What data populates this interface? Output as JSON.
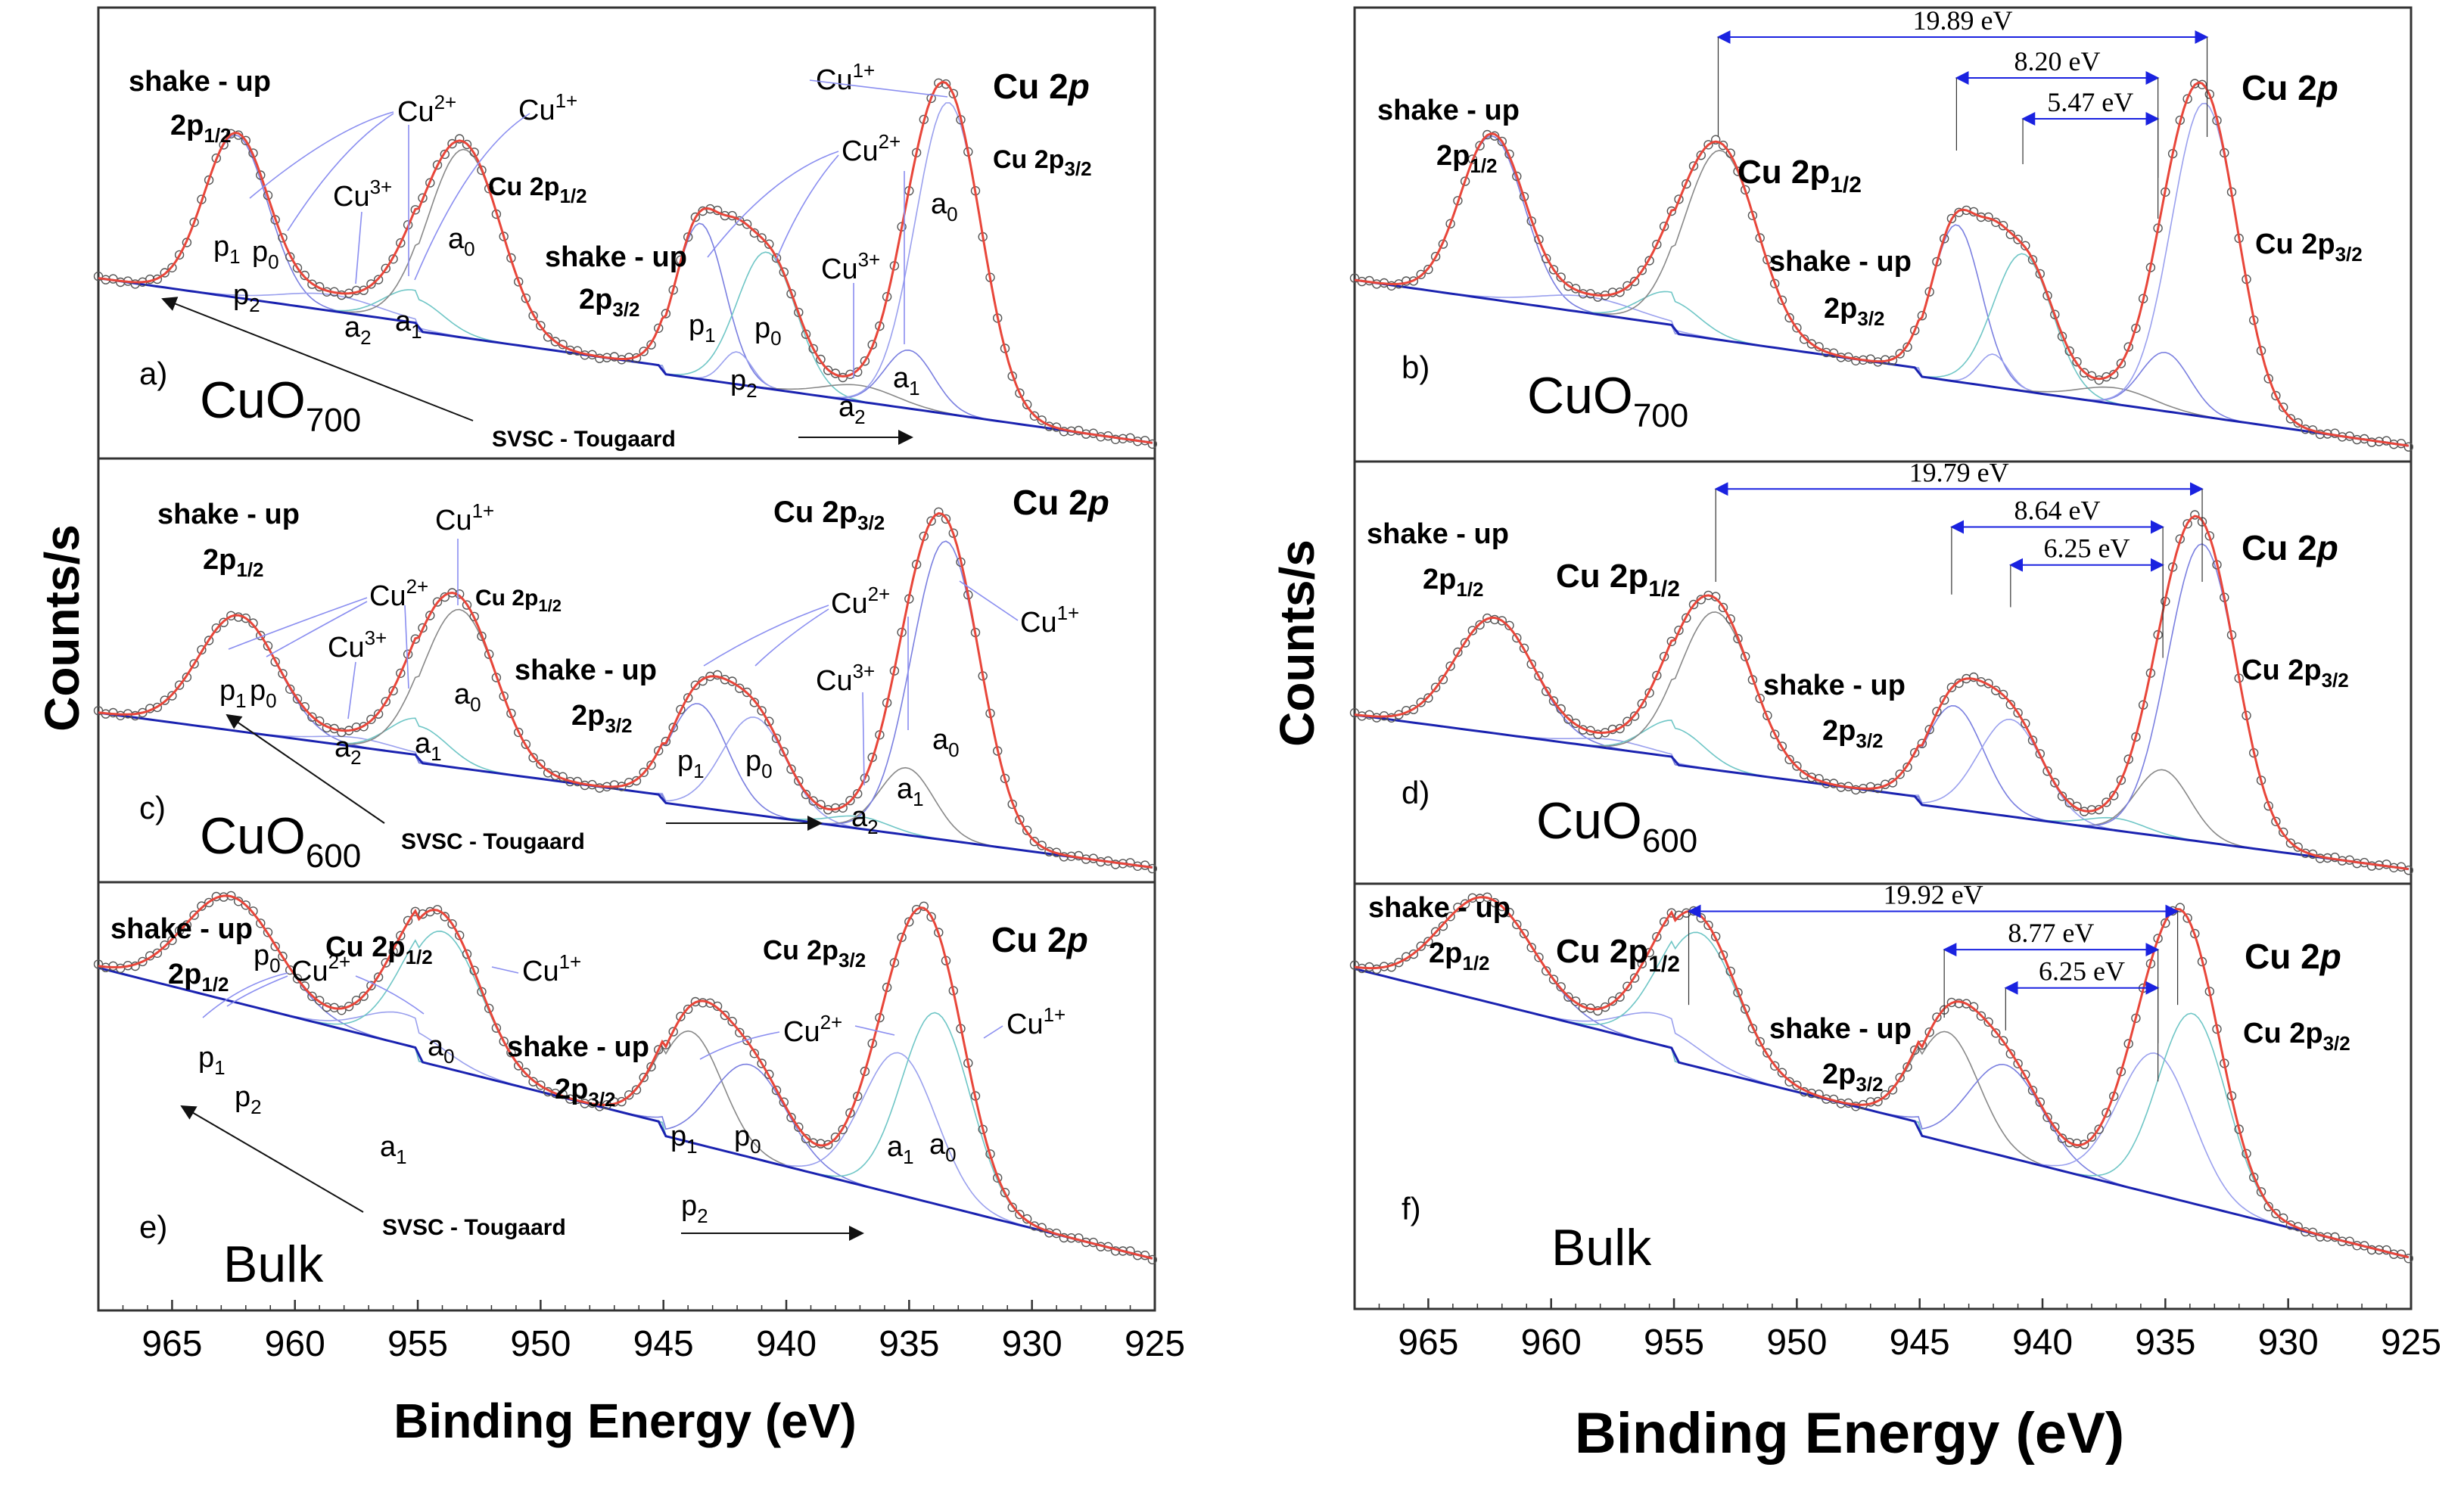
{
  "figure": {
    "ylabel": "Counts/s",
    "xlabel": "Binding Energy (eV)"
  },
  "chart_data": [
    {
      "id": "a",
      "type": "line",
      "panel_label": "a)",
      "sample": "CuO",
      "sample_sub": "700",
      "title": "Cu 2p",
      "xlim": [
        968,
        925
      ],
      "xlabel": "Binding Energy (eV)",
      "ylabel": "Counts/s",
      "background_label": "SVSC - Tougaard",
      "peak_labels": [
        "shake - up 2p1/2",
        "Cu2+",
        "Cu1+",
        "Cu3+",
        "Cu 2p1/2",
        "Cu 2p3/2",
        "shake - up 2p3/2",
        "a0",
        "a1",
        "a2",
        "p0",
        "p1",
        "p2"
      ],
      "components": [
        {
          "name": "p1",
          "center": 962.7
        },
        {
          "name": "p0",
          "center": 961.3
        },
        {
          "name": "p2",
          "center": 958.5
        },
        {
          "name": "a2",
          "center": 957.5
        },
        {
          "name": "a1",
          "center": 955.2
        },
        {
          "name": "a0",
          "center": 953.1
        },
        {
          "name": "p1",
          "center": 943.5
        },
        {
          "name": "p2",
          "center": 942.0
        },
        {
          "name": "p0",
          "center": 940.8
        },
        {
          "name": "a2",
          "center": 937.5
        },
        {
          "name": "a1",
          "center": 935.0
        },
        {
          "name": "a0",
          "center": 933.3
        }
      ]
    },
    {
      "id": "b",
      "type": "line",
      "panel_label": "b)",
      "sample": "CuO",
      "sample_sub": "700",
      "title": "Cu 2p",
      "xlim": [
        968,
        925
      ],
      "xticks": [
        965,
        960,
        955,
        950,
        945,
        940,
        935,
        930,
        925
      ],
      "peak_labels": [
        "shake - up 2p1/2",
        "Cu 2p1/2",
        "shake - up 2p3/2",
        "Cu 2p3/2"
      ],
      "splittings": [
        {
          "label": "19.89 eV",
          "from": 953.2,
          "to": 933.3
        },
        {
          "label": "8.20 eV",
          "from": 943.5,
          "to": 935.3
        },
        {
          "label": "5.47 eV",
          "from": 940.8,
          "to": 935.3
        }
      ]
    },
    {
      "id": "c",
      "type": "line",
      "panel_label": "c)",
      "sample": "CuO",
      "sample_sub": "600",
      "title": "Cu 2p",
      "xlim": [
        968,
        925
      ],
      "background_label": "SVSC - Tougaard",
      "peak_labels": [
        "shake - up 2p1/2",
        "Cu2+",
        "Cu1+",
        "Cu3+",
        "Cu 2p1/2",
        "Cu 2p3/2",
        "shake - up 2p3/2",
        "a0",
        "a1",
        "a2",
        "p0",
        "p1"
      ],
      "components": [
        {
          "name": "p1",
          "center": 962.5
        },
        {
          "name": "p0",
          "center": 961.5
        },
        {
          "name": "a2",
          "center": 957.5
        },
        {
          "name": "a1",
          "center": 955.0
        },
        {
          "name": "a0",
          "center": 953.3
        },
        {
          "name": "p1",
          "center": 943.5
        },
        {
          "name": "p0",
          "center": 941.3
        },
        {
          "name": "a2",
          "center": 937.0
        },
        {
          "name": "a1",
          "center": 935.0
        },
        {
          "name": "a0",
          "center": 933.5
        }
      ]
    },
    {
      "id": "d",
      "type": "line",
      "panel_label": "d)",
      "sample": "CuO",
      "sample_sub": "600",
      "title": "Cu 2p",
      "xlim": [
        968,
        925
      ],
      "xticks": [
        965,
        960,
        955,
        950,
        945,
        940,
        935,
        930,
        925
      ],
      "peak_labels": [
        "shake - up 2p1/2",
        "Cu 2p1/2",
        "shake - up 2p3/2",
        "Cu 2p3/2"
      ],
      "splittings": [
        {
          "label": "19.79 eV",
          "from": 953.3,
          "to": 933.5
        },
        {
          "label": "8.64 eV",
          "from": 943.7,
          "to": 935.1
        },
        {
          "label": "6.25 eV",
          "from": 941.3,
          "to": 935.1
        }
      ]
    },
    {
      "id": "e",
      "type": "line",
      "panel_label": "e)",
      "sample": "Bulk",
      "title": "Cu 2p",
      "xlim": [
        968,
        925
      ],
      "xticks": [
        965,
        960,
        955,
        950,
        945,
        940,
        935,
        930,
        925
      ],
      "background_label": "SVSC - Tougaard",
      "peak_labels": [
        "shake - up 2p1/2",
        "Cu2+",
        "Cu1+",
        "Cu 2p1/2",
        "Cu 2p3/2",
        "shake - up 2p3/2",
        "a0",
        "a1",
        "p0",
        "p1",
        "p2"
      ],
      "components": [
        {
          "name": "p1",
          "center": 962.8
        },
        {
          "name": "p0",
          "center": 961.8
        },
        {
          "name": "p2",
          "center": 960.5
        },
        {
          "name": "a1",
          "center": 955.5
        },
        {
          "name": "a0",
          "center": 954.0
        },
        {
          "name": "p1",
          "center": 944.0
        },
        {
          "name": "p2",
          "center": 943.0
        },
        {
          "name": "p0",
          "center": 941.5
        },
        {
          "name": "a1",
          "center": 935.5
        },
        {
          "name": "a0",
          "center": 933.8
        }
      ]
    },
    {
      "id": "f",
      "type": "line",
      "panel_label": "f)",
      "sample": "Bulk",
      "title": "Cu 2p",
      "xlim": [
        968,
        925
      ],
      "xticks": [
        965,
        960,
        955,
        950,
        945,
        940,
        935,
        930,
        925
      ],
      "peak_labels": [
        "shake - up 2p1/2",
        "Cu 2p1/2",
        "shake - up 2p3/2",
        "Cu 2p3/2"
      ],
      "splittings": [
        {
          "label": "19.92 eV",
          "from": 954.4,
          "to": 934.5
        },
        {
          "label": "8.77 eV",
          "from": 944.0,
          "to": 935.3
        },
        {
          "label": "6.25 eV",
          "from": 941.5,
          "to": 935.3
        }
      ]
    }
  ]
}
